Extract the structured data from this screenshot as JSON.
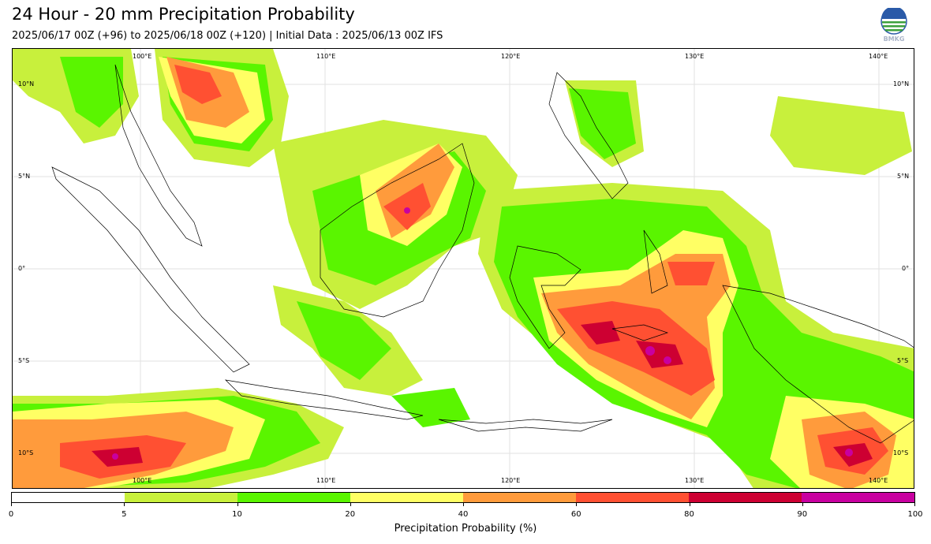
{
  "header": {
    "title": "24 Hour - 20 mm Precipitation Probability",
    "subtitle": "2025/06/17 00Z (+96) to 2025/06/18 00Z (+120) | Initial Data : 2025/06/13 00Z IFS",
    "logo_text": "BMKG"
  },
  "map": {
    "lon_labels": [
      "100°E",
      "110°E",
      "120°E",
      "130°E",
      "140°E"
    ],
    "lat_labels": [
      "10°N",
      "5°N",
      "0°",
      "5°S",
      "10°S"
    ],
    "region": "Indonesia / Maritime Continent"
  },
  "colorbar": {
    "title": "Precipitation Probability (%)",
    "ticks": [
      "0",
      "5",
      "10",
      "20",
      "40",
      "60",
      "80",
      "90",
      "100"
    ],
    "colors": [
      "#ffffff",
      "#c8f03c",
      "#5af500",
      "#ffff64",
      "#ff9b3c",
      "#ff5032",
      "#cd0032",
      "#c800a0"
    ]
  }
}
